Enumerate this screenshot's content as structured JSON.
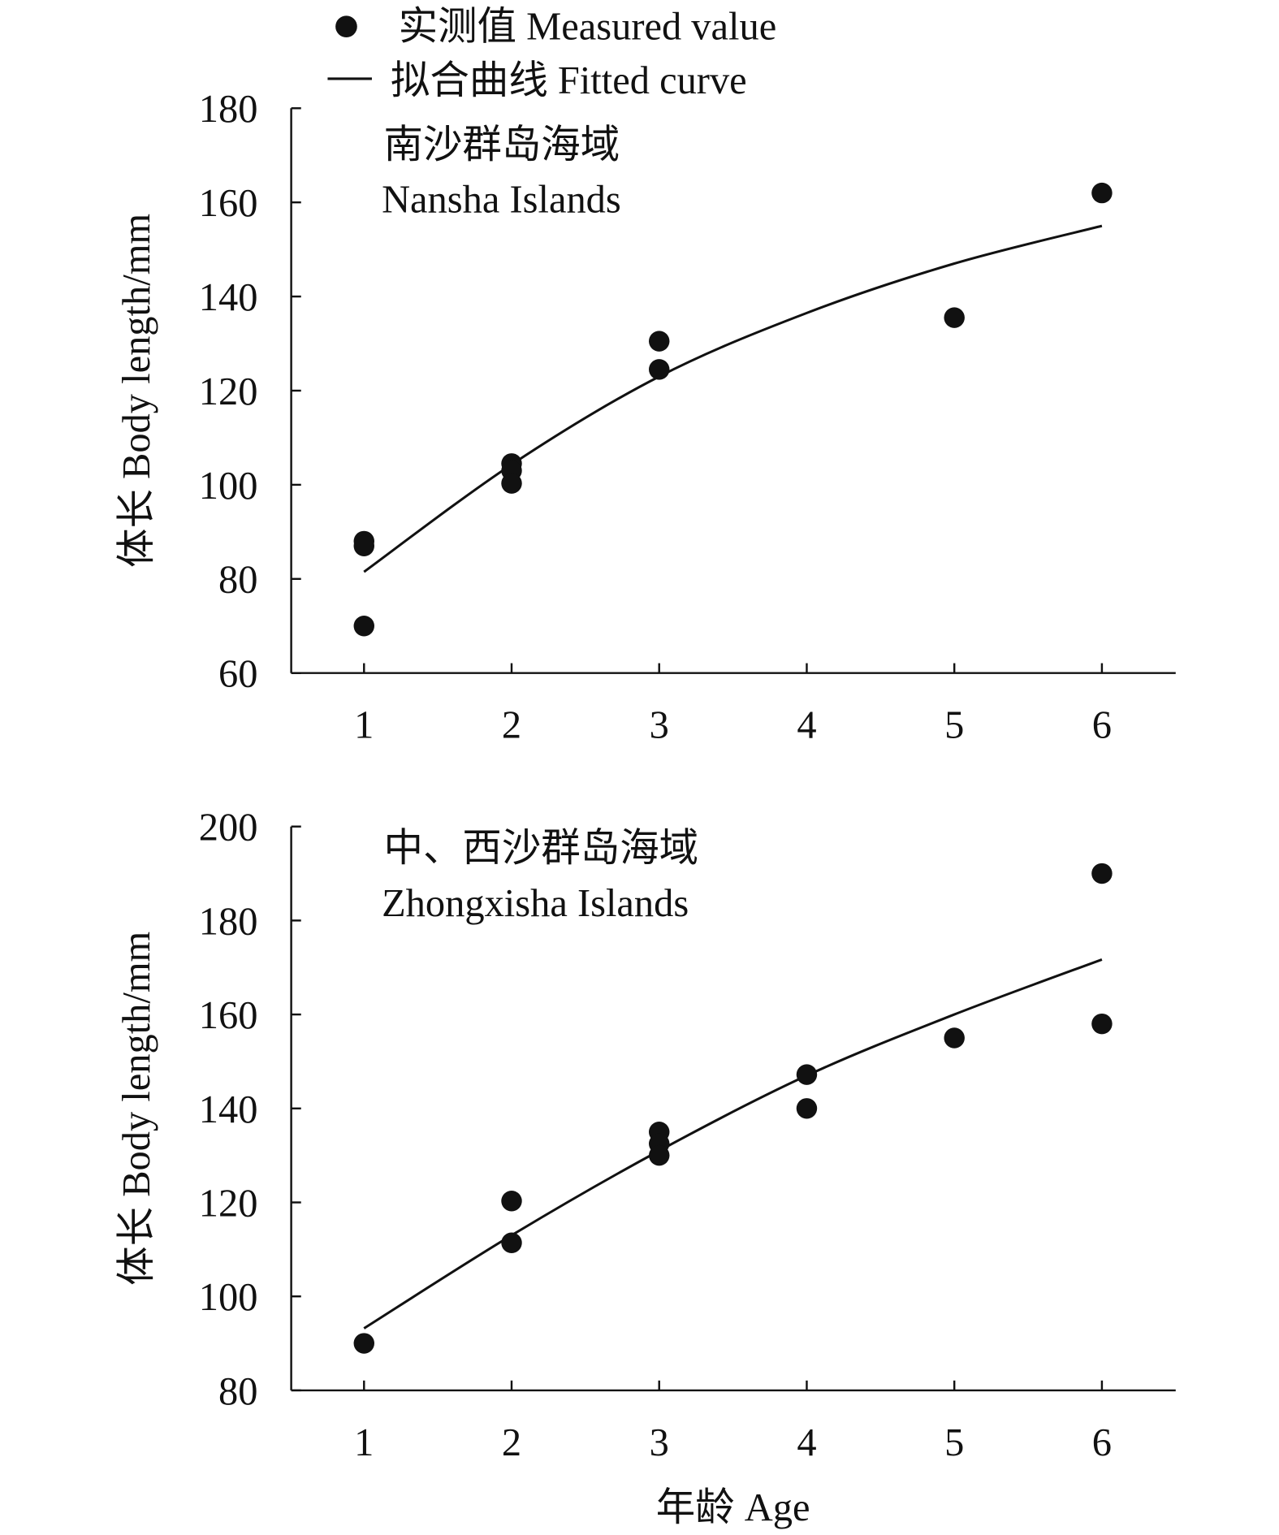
{
  "legend": {
    "measured": "实测值  Measured value",
    "fitted": "拟合曲线  Fitted curve"
  },
  "xlabel": "年龄 Age",
  "chart_data": [
    {
      "type": "scatter",
      "title_cn": "南沙群岛海域",
      "title_en": "Nansha Islands",
      "ylabel": "体长 Body length/mm",
      "xlabel": "年龄 Age",
      "xlim": [
        0.5,
        6.5
      ],
      "ylim": [
        60,
        180
      ],
      "xticks": [
        1,
        2,
        3,
        4,
        5,
        6
      ],
      "yticks": [
        60,
        80,
        100,
        120,
        140,
        160,
        180
      ],
      "grid": false,
      "measured": [
        [
          1,
          88
        ],
        [
          1,
          87
        ],
        [
          1,
          70
        ],
        [
          2,
          104.5
        ],
        [
          2,
          103
        ],
        [
          2,
          100.3
        ],
        [
          3,
          130.5
        ],
        [
          3,
          124.5
        ],
        [
          5,
          135.5
        ],
        [
          6,
          162
        ]
      ],
      "fitted": [
        [
          1,
          81.5
        ],
        [
          2,
          104.3
        ],
        [
          3,
          123
        ],
        [
          4,
          136.5
        ],
        [
          5,
          147
        ],
        [
          6,
          155
        ]
      ]
    },
    {
      "type": "scatter",
      "title_cn": "中、西沙群岛海域",
      "title_en": "Zhongxisha Islands",
      "ylabel": "体长 Body length/mm",
      "xlabel": "年龄 Age",
      "xlim": [
        0.5,
        6.5
      ],
      "ylim": [
        80,
        200
      ],
      "xticks": [
        1,
        2,
        3,
        4,
        5,
        6
      ],
      "yticks": [
        80,
        100,
        120,
        140,
        160,
        180,
        200
      ],
      "grid": false,
      "measured": [
        [
          1,
          90
        ],
        [
          2,
          120.3
        ],
        [
          2,
          111.4
        ],
        [
          3,
          135
        ],
        [
          3,
          132.5
        ],
        [
          3,
          130
        ],
        [
          4,
          147.2
        ],
        [
          4,
          140
        ],
        [
          5,
          155
        ],
        [
          6,
          190
        ],
        [
          6,
          158
        ]
      ],
      "fitted": [
        [
          1,
          93.2
        ],
        [
          2,
          113
        ],
        [
          3,
          131
        ],
        [
          4,
          147
        ],
        [
          5,
          160
        ],
        [
          6,
          171.7
        ]
      ]
    }
  ]
}
